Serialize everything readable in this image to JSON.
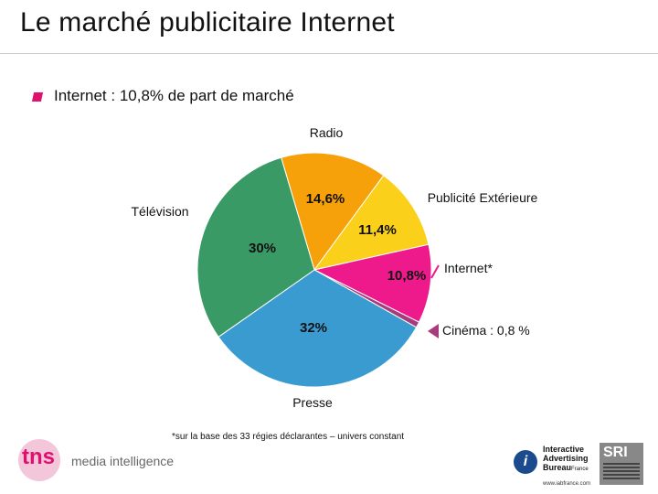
{
  "header": {
    "title": "Le marché publicitaire Internet",
    "subtitle": "Internet : 10,8% de part de marché"
  },
  "chart_data": {
    "type": "pie",
    "title": "Internet : 10,8% de part de marché",
    "slices": [
      {
        "name": "Radio",
        "value": 14.6,
        "value_label": "14,6%",
        "color": "#f7a10a"
      },
      {
        "name": "Publicité Extérieure",
        "value": 11.4,
        "value_label": "11,4%",
        "color": "#fad01a"
      },
      {
        "name": "Internet*",
        "value": 10.8,
        "value_label": "10,8%",
        "color": "#ee1a8c"
      },
      {
        "name": "Cinéma : 0,8 %",
        "value": 0.8,
        "value_label": "",
        "color": "#a83b7c"
      },
      {
        "name": "Presse",
        "value": 32,
        "value_label": "32%",
        "color": "#3a9bd0"
      },
      {
        "name": "Télévision",
        "value": 30,
        "value_label": "30%",
        "color": "#3a9a66"
      }
    ]
  },
  "footnote": "*sur la base des 33 régies déclarantes – univers constant",
  "logos": {
    "tns_text": "tns",
    "tns_tagline": "media intelligence",
    "iab_line1": "Interactive",
    "iab_line2": "Advertising",
    "iab_line3": "Bureau",
    "iab_line3b": "France",
    "iab_url": "www.iabfrance.com",
    "iab_mark": "i",
    "sri_text": "SRI"
  }
}
